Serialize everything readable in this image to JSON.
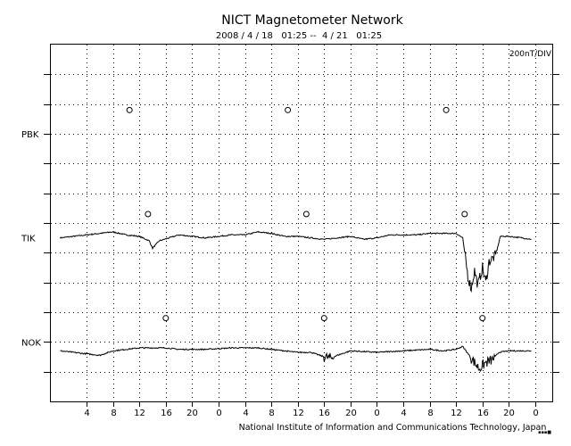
{
  "chart_data": {
    "type": "line",
    "title": "NICT Magnetometer Network",
    "subtitle": "2008 / 4 / 18   01:25 --  4 / 21   01:25",
    "scale_label": "200nT/DIV",
    "footer": "National Institute of Information and Communications Technology, Japan",
    "x_tick_labels": [
      "4",
      "8",
      "12",
      "16",
      "20",
      "0",
      "4",
      "8",
      "12",
      "16",
      "20",
      "0",
      "4",
      "8",
      "12",
      "16",
      "20",
      "0"
    ],
    "x_tick_hours": [
      4,
      8,
      12,
      16,
      20,
      24,
      28,
      32,
      36,
      40,
      44,
      48,
      52,
      56,
      60,
      64,
      68,
      72
    ],
    "xlim_hours": [
      -1.42,
      74.58
    ],
    "y_divisions": 12,
    "grid": true,
    "stations": [
      {
        "name": "PBK",
        "baseline_div": 3,
        "marker_hours": [
          10.5,
          34.5,
          58.5
        ],
        "marker_offset_div": 0.8,
        "values": []
      },
      {
        "name": "TIK",
        "baseline_div": 6.5,
        "marker_hours": [
          13.3,
          37.3,
          61.3
        ],
        "marker_offset_div": 0.8,
        "values": [
          [
            0,
            0
          ],
          [
            2,
            0.05
          ],
          [
            4,
            0.1
          ],
          [
            6,
            0.15
          ],
          [
            8,
            0.2
          ],
          [
            10,
            0.1
          ],
          [
            12,
            0.05
          ],
          [
            13.5,
            -0.1
          ],
          [
            14.0,
            -0.35
          ],
          [
            15,
            -0.1
          ],
          [
            18,
            0.1
          ],
          [
            22,
            0
          ],
          [
            26,
            0.1
          ],
          [
            28,
            0.1
          ],
          [
            30,
            0.2
          ],
          [
            32,
            0.15
          ],
          [
            34,
            0.05
          ],
          [
            36,
            0.05
          ],
          [
            38,
            0
          ],
          [
            40,
            -0.05
          ],
          [
            42,
            0
          ],
          [
            44,
            0.05
          ],
          [
            46,
            -0.05
          ],
          [
            48,
            0
          ],
          [
            50,
            0.1
          ],
          [
            54,
            0.1
          ],
          [
            56,
            0.15
          ],
          [
            58,
            0.15
          ],
          [
            60,
            0.15
          ],
          [
            61,
            0
          ],
          [
            61.8,
            -1.3
          ],
          [
            62.3,
            -1.7
          ],
          [
            62.8,
            -1.1
          ],
          [
            63.3,
            -1.6
          ],
          [
            64,
            -1.0
          ],
          [
            64.5,
            -1.5
          ],
          [
            65,
            -0.8
          ],
          [
            66,
            -0.6
          ],
          [
            66.7,
            0.05
          ],
          [
            68,
            0.05
          ],
          [
            70,
            0
          ],
          [
            71.5,
            -0.05
          ]
        ]
      },
      {
        "name": "NOK",
        "baseline_div": 10,
        "marker_hours": [
          16.0,
          40.0,
          64.0
        ],
        "marker_offset_div": 0.8,
        "values": [
          [
            0,
            -0.3
          ],
          [
            2,
            -0.35
          ],
          [
            4,
            -0.4
          ],
          [
            6,
            -0.45
          ],
          [
            8,
            -0.3
          ],
          [
            10,
            -0.25
          ],
          [
            12,
            -0.2
          ],
          [
            14,
            -0.2
          ],
          [
            16,
            -0.2
          ],
          [
            18,
            -0.25
          ],
          [
            22,
            -0.25
          ],
          [
            26,
            -0.2
          ],
          [
            30,
            -0.2
          ],
          [
            34,
            -0.3
          ],
          [
            36,
            -0.35
          ],
          [
            38,
            -0.35
          ],
          [
            40,
            -0.5
          ],
          [
            41,
            -0.55
          ],
          [
            42,
            -0.45
          ],
          [
            44,
            -0.3
          ],
          [
            48,
            -0.35
          ],
          [
            52,
            -0.3
          ],
          [
            56,
            -0.25
          ],
          [
            58,
            -0.3
          ],
          [
            60,
            -0.25
          ],
          [
            61,
            -0.15
          ],
          [
            61.5,
            -0.3
          ],
          [
            62.5,
            -0.6
          ],
          [
            63.5,
            -0.9
          ],
          [
            64.5,
            -0.7
          ],
          [
            65.5,
            -0.6
          ],
          [
            66.5,
            -0.35
          ],
          [
            68,
            -0.3
          ],
          [
            70,
            -0.3
          ],
          [
            71.5,
            -0.3
          ]
        ]
      }
    ]
  }
}
